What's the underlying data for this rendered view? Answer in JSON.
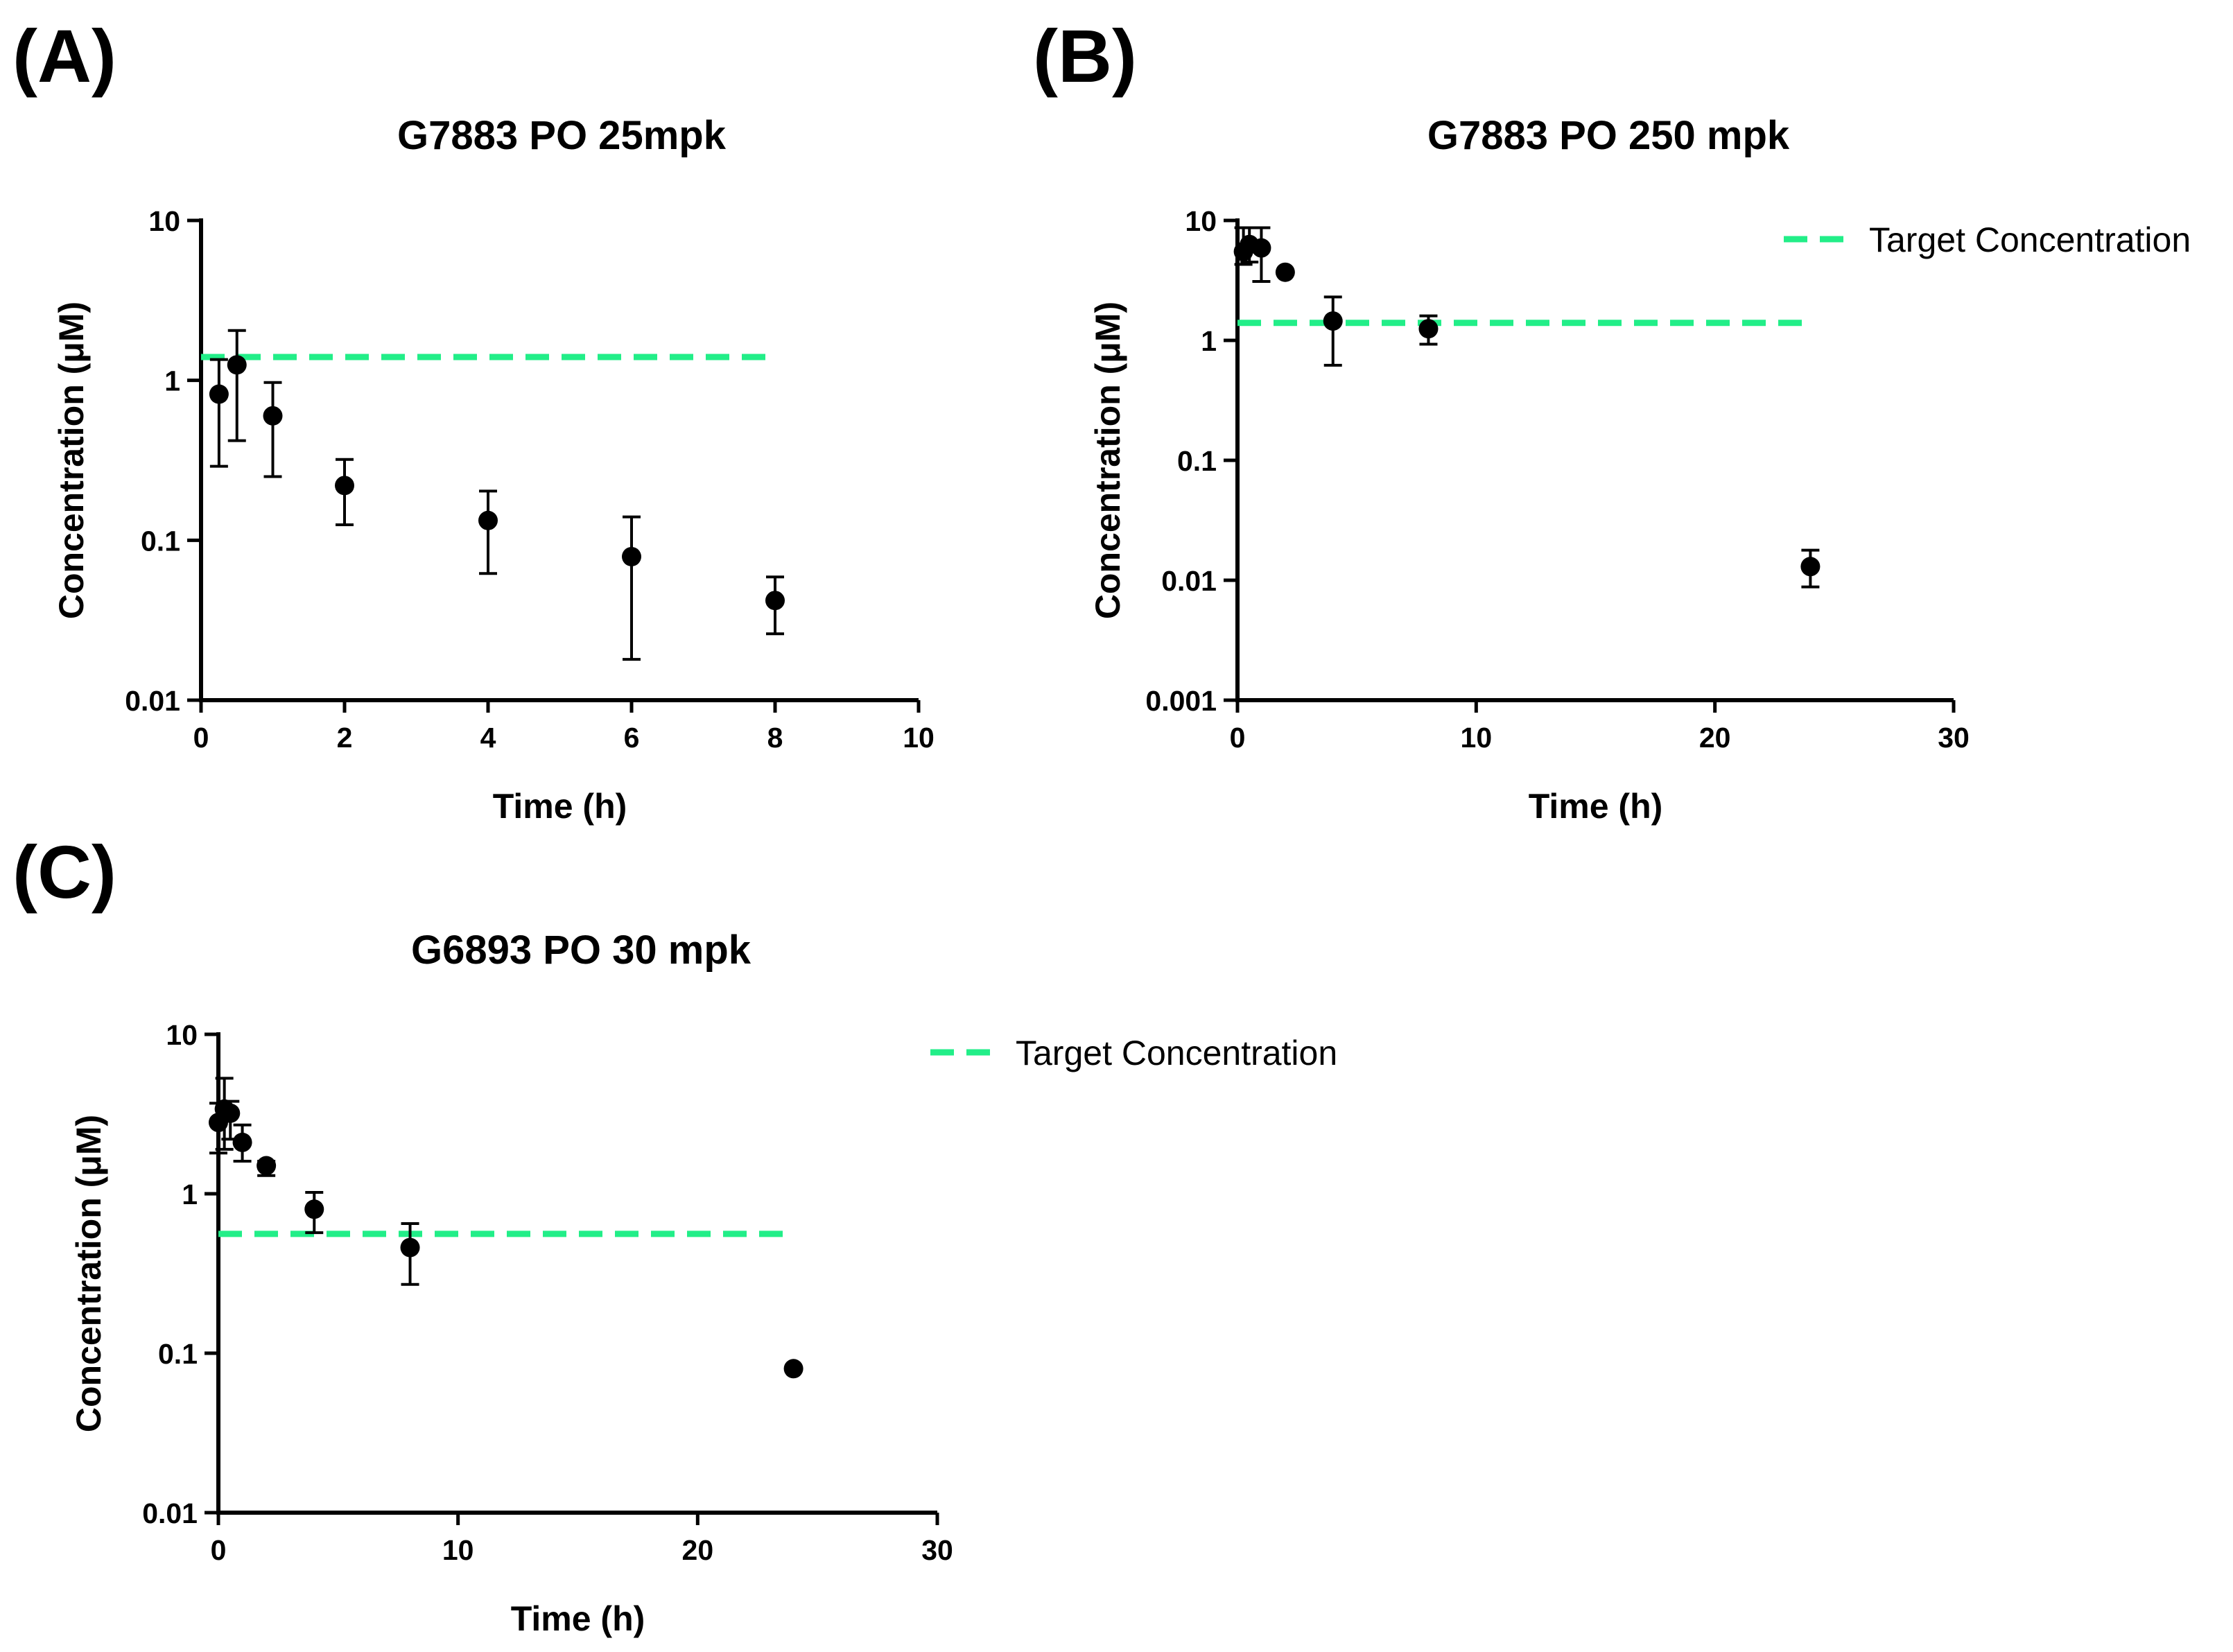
{
  "colors": {
    "target": "#22ee88",
    "data": "#000000"
  },
  "legend_label": "Target Concentration",
  "chart_data": [
    {
      "id": "A",
      "panel_label": "(A)",
      "type": "scatter",
      "title": "G7883 PO 25mpk",
      "xlabel": "Time (h)",
      "ylabel": "Concentration (μM)",
      "yscale": "log",
      "xlim": [
        0,
        10
      ],
      "ylim": [
        0.01,
        10
      ],
      "xticks": [
        0,
        2,
        4,
        6,
        8,
        10
      ],
      "xtick_labels": [
        "0",
        "2",
        "4",
        "6",
        "8",
        "10"
      ],
      "yticks": [
        0.01,
        0.1,
        1,
        10
      ],
      "ytick_labels": [
        "0.01",
        "0.1",
        "1",
        "10"
      ],
      "target_concentration": {
        "y": 1.4,
        "x_from": 0,
        "x_to": 8
      },
      "legend": false,
      "points": [
        {
          "x": 0.25,
          "y": 0.82,
          "lo": 0.29,
          "hi": 1.35
        },
        {
          "x": 0.5,
          "y": 1.25,
          "lo": 0.42,
          "hi": 2.05
        },
        {
          "x": 1,
          "y": 0.6,
          "lo": 0.25,
          "hi": 0.97
        },
        {
          "x": 2,
          "y": 0.22,
          "lo": 0.125,
          "hi": 0.32
        },
        {
          "x": 4,
          "y": 0.133,
          "lo": 0.062,
          "hi": 0.203
        },
        {
          "x": 6,
          "y": 0.079,
          "lo": 0.018,
          "hi": 0.14
        },
        {
          "x": 8,
          "y": 0.042,
          "lo": 0.026,
          "hi": 0.059
        }
      ]
    },
    {
      "id": "B",
      "panel_label": "(B)",
      "type": "scatter",
      "title": "G7883 PO 250 mpk",
      "xlabel": "Time (h)",
      "ylabel": "Concentration (μM)",
      "yscale": "log",
      "xlim": [
        0,
        30
      ],
      "ylim": [
        0.001,
        10
      ],
      "xticks": [
        0,
        10,
        20,
        30
      ],
      "xtick_labels": [
        "0",
        "10",
        "20",
        "30"
      ],
      "yticks": [
        0.001,
        0.01,
        0.1,
        1,
        10
      ],
      "ytick_labels": [
        "0.001",
        "0.01",
        "0.1",
        "1",
        "10"
      ],
      "target_concentration": {
        "y": 1.4,
        "x_from": 0,
        "x_to": 24
      },
      "legend": true,
      "points": [
        {
          "x": 0.25,
          "y": 5.5,
          "lo": 4.3,
          "hi": 8.7
        },
        {
          "x": 0.5,
          "y": 6.3,
          "lo": 4.5,
          "hi": 8.7
        },
        {
          "x": 1,
          "y": 5.9,
          "lo": 3.1,
          "hi": 8.7
        },
        {
          "x": 2,
          "y": 3.7,
          "lo": null,
          "hi": null
        },
        {
          "x": 4,
          "y": 1.45,
          "lo": 0.62,
          "hi": 2.3
        },
        {
          "x": 8,
          "y": 1.25,
          "lo": 0.93,
          "hi": 1.6
        },
        {
          "x": 24,
          "y": 0.013,
          "lo": 0.0088,
          "hi": 0.0178
        }
      ]
    },
    {
      "id": "C",
      "panel_label": "(C)",
      "type": "scatter",
      "title": "G6893 PO 30 mpk",
      "xlabel": "Time (h)",
      "ylabel": "Concentration (μM)",
      "yscale": "log",
      "xlim": [
        0,
        30
      ],
      "ylim": [
        0.01,
        10
      ],
      "xticks": [
        0,
        10,
        20,
        30
      ],
      "xtick_labels": [
        "0",
        "10",
        "20",
        "30"
      ],
      "yticks": [
        0.01,
        0.1,
        1,
        10
      ],
      "ytick_labels": [
        "0.01",
        "0.1",
        "1",
        "10"
      ],
      "target_concentration": {
        "y": 0.56,
        "x_from": 0,
        "x_to": 24
      },
      "legend": true,
      "points": [
        {
          "x": 0,
          "y": 2.8,
          "lo": 1.8,
          "hi": 3.7
        },
        {
          "x": 0.25,
          "y": 3.4,
          "lo": 1.9,
          "hi": 5.3
        },
        {
          "x": 0.5,
          "y": 3.2,
          "lo": 2.2,
          "hi": 3.8
        },
        {
          "x": 1,
          "y": 2.1,
          "lo": 1.6,
          "hi": 2.7
        },
        {
          "x": 2,
          "y": 1.5,
          "lo": 1.3,
          "hi": 1.6
        },
        {
          "x": 4,
          "y": 0.8,
          "lo": 0.57,
          "hi": 1.02
        },
        {
          "x": 8,
          "y": 0.46,
          "lo": 0.27,
          "hi": 0.65
        },
        {
          "x": 24,
          "y": 0.08,
          "lo": null,
          "hi": null
        }
      ]
    }
  ]
}
